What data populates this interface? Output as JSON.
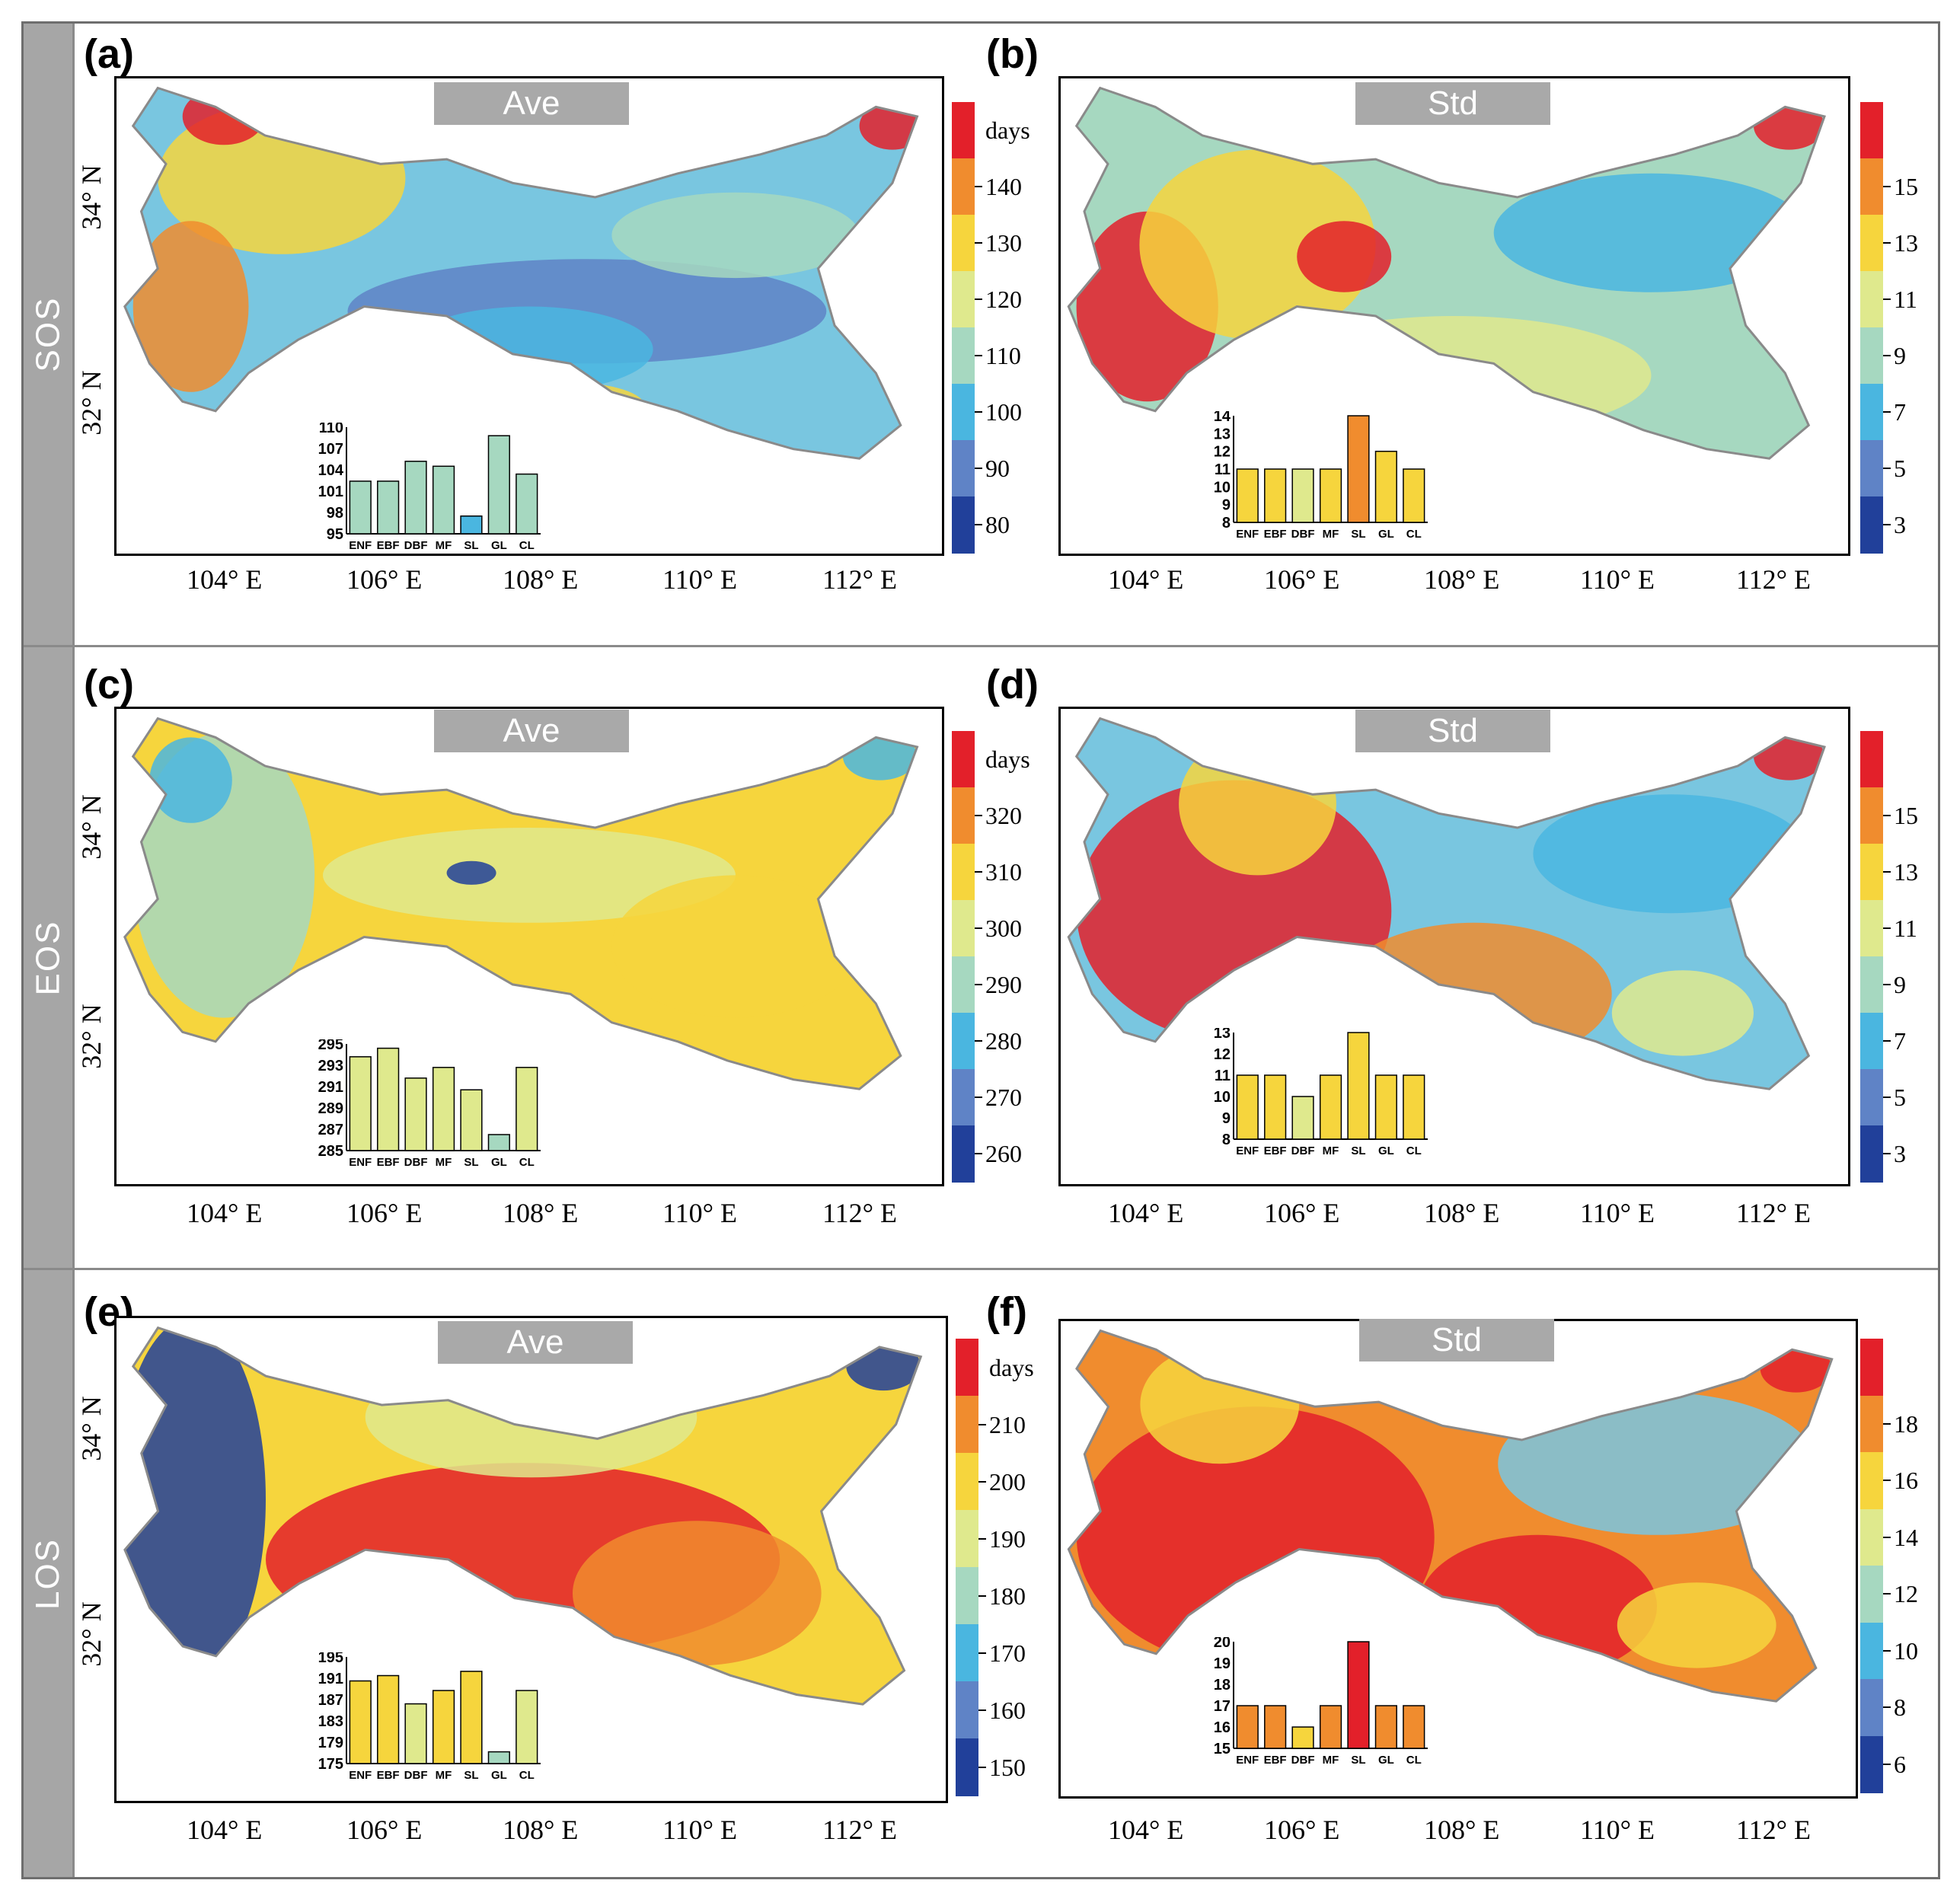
{
  "row_labels": [
    "SOS",
    "EOS",
    "LOS"
  ],
  "lat_labels": [
    "34° N",
    "32° N"
  ],
  "lon_labels": [
    "104° E",
    "106° E",
    "108° E",
    "110° E",
    "112° E"
  ],
  "colors": {
    "ramp8": [
      "#21409a",
      "#5f83c6",
      "#4ab6e0",
      "#a6d8c0",
      "#dfe98d",
      "#f6d53d",
      "#f08c2e",
      "#e3202a"
    ],
    "frame_gray": "#a6a6a6"
  },
  "panels": [
    {
      "label": "(a)",
      "header": "Ave",
      "colorbar": {
        "unit": "days",
        "ticks": [
          "140",
          "130",
          "120",
          "110",
          "100",
          "90",
          "80"
        ]
      }
    },
    {
      "label": "(b)",
      "header": "Std",
      "colorbar": {
        "unit": "",
        "ticks": [
          "15",
          "13",
          "11",
          "9",
          "7",
          "5",
          "3"
        ]
      }
    },
    {
      "label": "(c)",
      "header": "Ave",
      "colorbar": {
        "unit": "days",
        "ticks": [
          "320",
          "310",
          "300",
          "290",
          "280",
          "270",
          "260"
        ]
      }
    },
    {
      "label": "(d)",
      "header": "Std",
      "colorbar": {
        "unit": "",
        "ticks": [
          "15",
          "13",
          "11",
          "9",
          "7",
          "5",
          "3"
        ]
      }
    },
    {
      "label": "(e)",
      "header": "Ave",
      "colorbar": {
        "unit": "days",
        "ticks": [
          "210",
          "200",
          "190",
          "180",
          "170",
          "160",
          "150"
        ]
      }
    },
    {
      "label": "(f)",
      "header": "Std",
      "colorbar": {
        "unit": "",
        "ticks": [
          "18",
          "16",
          "14",
          "12",
          "10",
          "8",
          "6"
        ]
      }
    }
  ],
  "chart_data": [
    {
      "type": "bar",
      "panel": "(a)",
      "title": "SOS Ave",
      "categories": [
        "ENF",
        "EBF",
        "DBF",
        "MF",
        "SL",
        "GL",
        "CL"
      ],
      "values": [
        102.4,
        102.4,
        105.2,
        104.5,
        97.5,
        108.8,
        103.4
      ],
      "ylim": [
        95,
        110
      ],
      "yticks": [
        "110",
        "107",
        "104",
        "101",
        "98",
        "95"
      ],
      "colors": [
        "#a6d8c0",
        "#a6d8c0",
        "#a6d8c0",
        "#a6d8c0",
        "#4ab6e0",
        "#a6d8c0",
        "#a6d8c0"
      ]
    },
    {
      "type": "bar",
      "panel": "(b)",
      "title": "SOS Std",
      "categories": [
        "ENF",
        "EBF",
        "DBF",
        "MF",
        "SL",
        "GL",
        "CL"
      ],
      "values": [
        11,
        11,
        11,
        11,
        14,
        12,
        11
      ],
      "ylim": [
        8,
        14
      ],
      "yticks": [
        "14",
        "13",
        "12",
        "11",
        "10",
        "9",
        "8"
      ],
      "colors": [
        "#f6d53d",
        "#f6d53d",
        "#dfe98d",
        "#f6d53d",
        "#f08c2e",
        "#f6d53d",
        "#f6d53d"
      ]
    },
    {
      "type": "bar",
      "panel": "(c)",
      "title": "EOS Ave",
      "categories": [
        "ENF",
        "EBF",
        "DBF",
        "MF",
        "SL",
        "GL",
        "CL"
      ],
      "values": [
        293.8,
        294.6,
        291.8,
        292.8,
        290.7,
        286.5,
        292.8
      ],
      "ylim": [
        285,
        295
      ],
      "yticks": [
        "295",
        "293",
        "291",
        "289",
        "287",
        "285"
      ],
      "colors": [
        "#dfe98d",
        "#dfe98d",
        "#dfe98d",
        "#dfe98d",
        "#dfe98d",
        "#a6d8c0",
        "#dfe98d"
      ]
    },
    {
      "type": "bar",
      "panel": "(d)",
      "title": "EOS Std",
      "categories": [
        "ENF",
        "EBF",
        "DBF",
        "MF",
        "SL",
        "GL",
        "CL"
      ],
      "values": [
        11,
        11,
        10,
        11,
        13,
        11,
        11
      ],
      "ylim": [
        8,
        13
      ],
      "yticks": [
        "13",
        "12",
        "11",
        "10",
        "9",
        "8"
      ],
      "colors": [
        "#f6d53d",
        "#f6d53d",
        "#dfe98d",
        "#f6d53d",
        "#f6d53d",
        "#f6d53d",
        "#f6d53d"
      ]
    },
    {
      "type": "bar",
      "panel": "(e)",
      "title": "LOS Ave",
      "categories": [
        "ENF",
        "EBF",
        "DBF",
        "MF",
        "SL",
        "GL",
        "CL"
      ],
      "values": [
        190.5,
        191.5,
        186.2,
        188.7,
        192.3,
        177.2,
        188.7
      ],
      "ylim": [
        175,
        195
      ],
      "yticks": [
        "195",
        "191",
        "187",
        "183",
        "179",
        "175"
      ],
      "colors": [
        "#f6d53d",
        "#f6d53d",
        "#dfe98d",
        "#f6d53d",
        "#f6d53d",
        "#a6d8c0",
        "#dfe98d"
      ]
    },
    {
      "type": "bar",
      "panel": "(f)",
      "title": "LOS Std",
      "categories": [
        "ENF",
        "EBF",
        "DBF",
        "MF",
        "SL",
        "GL",
        "CL"
      ],
      "values": [
        17,
        17,
        16,
        17,
        20,
        17,
        17
      ],
      "ylim": [
        15,
        20
      ],
      "yticks": [
        "20",
        "19",
        "18",
        "17",
        "16",
        "15"
      ],
      "colors": [
        "#f08c2e",
        "#f08c2e",
        "#f6d53d",
        "#f08c2e",
        "#e3202a",
        "#f08c2e",
        "#f08c2e"
      ]
    }
  ]
}
